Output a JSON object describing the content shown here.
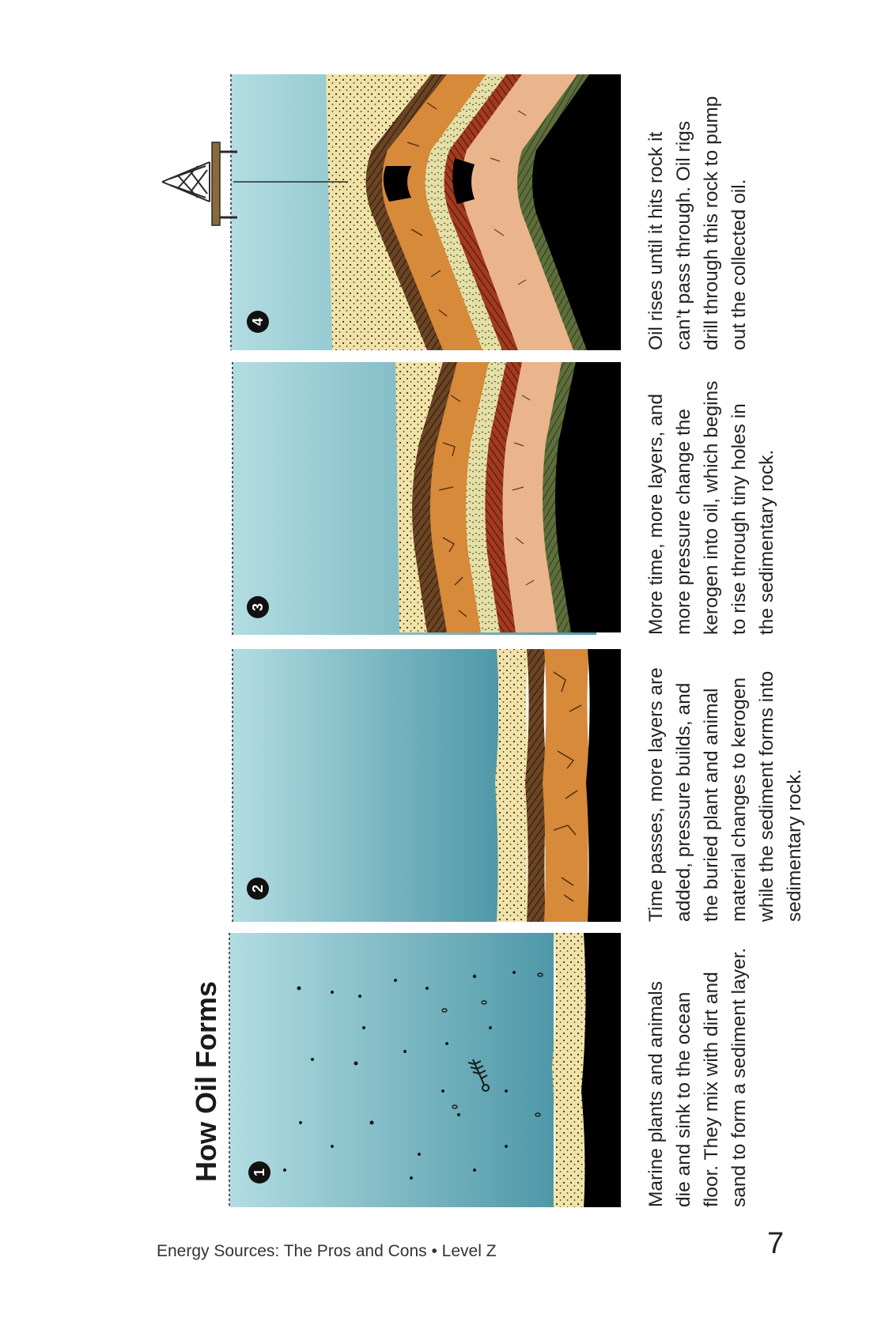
{
  "figure": {
    "title": "How Oil Forms",
    "panels": [
      {
        "number": "1",
        "caption_lines": [
          "Marine plants and animals",
          "die and sink to the ocean",
          "floor. They mix with dirt and",
          "sand to form a sediment layer."
        ]
      },
      {
        "number": "2",
        "caption_lines": [
          "Time passes, more layers are",
          "added, pressure builds, and",
          "the buried plant and animal",
          "material changes to kerogen",
          "while the sediment forms into",
          "sedimentary rock."
        ]
      },
      {
        "number": "3",
        "caption_lines": [
          "More time, more layers, and",
          "more pressure change the",
          "kerogen into oil, which begins",
          "to rise through tiny holes in",
          "the sedimentary rock."
        ]
      },
      {
        "number": "4",
        "caption_lines": [
          "Oil rises until it hits rock it",
          "can’t pass through. Oil rigs",
          "drill through this rock to pump",
          "out the collected oil."
        ]
      }
    ]
  },
  "footer": {
    "text": "Energy Sources: The Pros and Cons • Level Z",
    "page_number": "7"
  },
  "colors": {
    "water_light": "#b2dde2",
    "water_dark": "#4f98a8",
    "sand": "#f1e3a8",
    "brown": "#6b4424",
    "orange": "#d68a3a",
    "red": "#a23a1f",
    "peach": "#eab58c",
    "olive": "#5d6e3c",
    "bedrock": "#000000"
  }
}
